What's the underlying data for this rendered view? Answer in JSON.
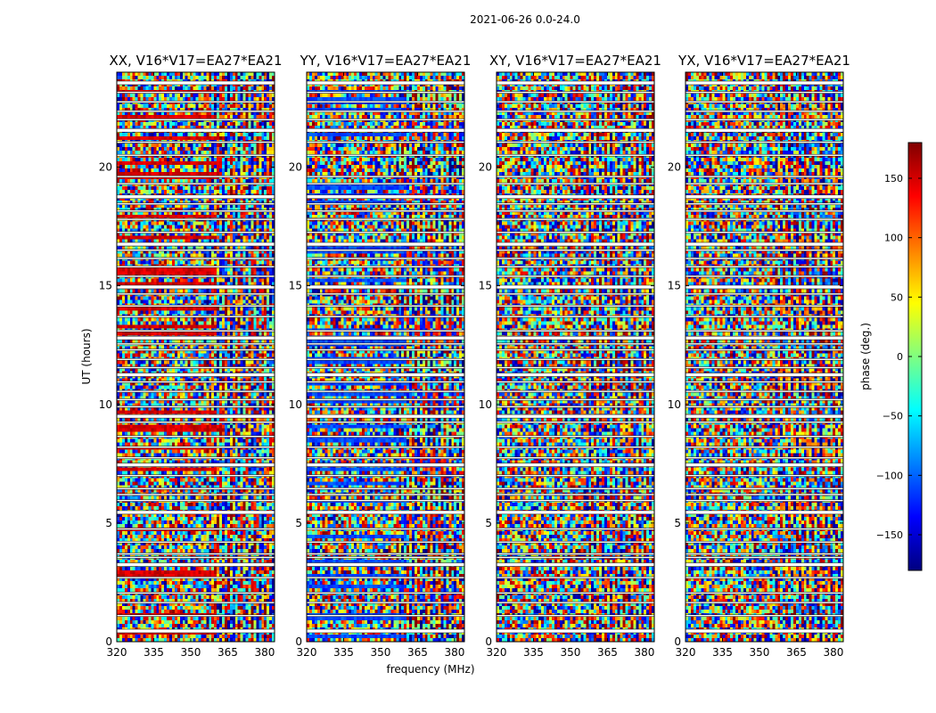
{
  "chart_data": {
    "type": "heatmap",
    "suptitle": "2021-06-26 0.0-24.0",
    "xlabel": "frequency (MHz)",
    "ylabel": "UT (hours)",
    "xlim": [
      320,
      384
    ],
    "ylim": [
      0,
      24
    ],
    "xticks": [
      320,
      335,
      350,
      365,
      380
    ],
    "yticks": [
      0,
      5,
      10,
      15,
      20
    ],
    "colorbar": {
      "label": "phase (deg.)",
      "range": [
        -180,
        180
      ],
      "ticks": [
        150,
        100,
        50,
        0,
        -50,
        -100,
        -150
      ],
      "tick_labels": [
        "150",
        "100",
        "50",
        "0",
        "−50",
        "−100",
        "−150"
      ],
      "colormap": [
        "#00007f",
        "#0000ff",
        "#007fff",
        "#00ffff",
        "#7fff7f",
        "#ffff00",
        "#ff7f00",
        "#ff0000",
        "#7f0000"
      ]
    },
    "panels": [
      {
        "title": "XX, V16*V17=EA27*EA21",
        "dominant_phase_deg": 150
      },
      {
        "title": "YY, V16*V17=EA27*EA21",
        "dominant_phase_deg": -110
      },
      {
        "title": "XY, V16*V17=EA27*EA21",
        "dominant_phase_deg": 0
      },
      {
        "title": "YX, V16*V17=EA27*EA21",
        "dominant_phase_deg": 0
      }
    ],
    "flagged_gaps_ut_hours": [
      0.45,
      1.1,
      1.65,
      2.05,
      2.7,
      3.25,
      3.55,
      3.7,
      4.2,
      4.75,
      5.45,
      5.95,
      6.2,
      6.45,
      7.0,
      7.45,
      7.75,
      8.2,
      8.65,
      9.25,
      9.5,
      9.9,
      10.2,
      10.55,
      10.95,
      11.25,
      11.55,
      11.9,
      12.3,
      12.55,
      12.8,
      13.1,
      13.7,
      14.15,
      14.65,
      14.95,
      15.4,
      15.8,
      16.15,
      16.5,
      16.75,
      17.25,
      17.8,
      18.15,
      18.45,
      18.75,
      19.3,
      19.6,
      20.5,
      21.05,
      21.55,
      22.0,
      22.35,
      22.75,
      23.15,
      23.55
    ]
  }
}
